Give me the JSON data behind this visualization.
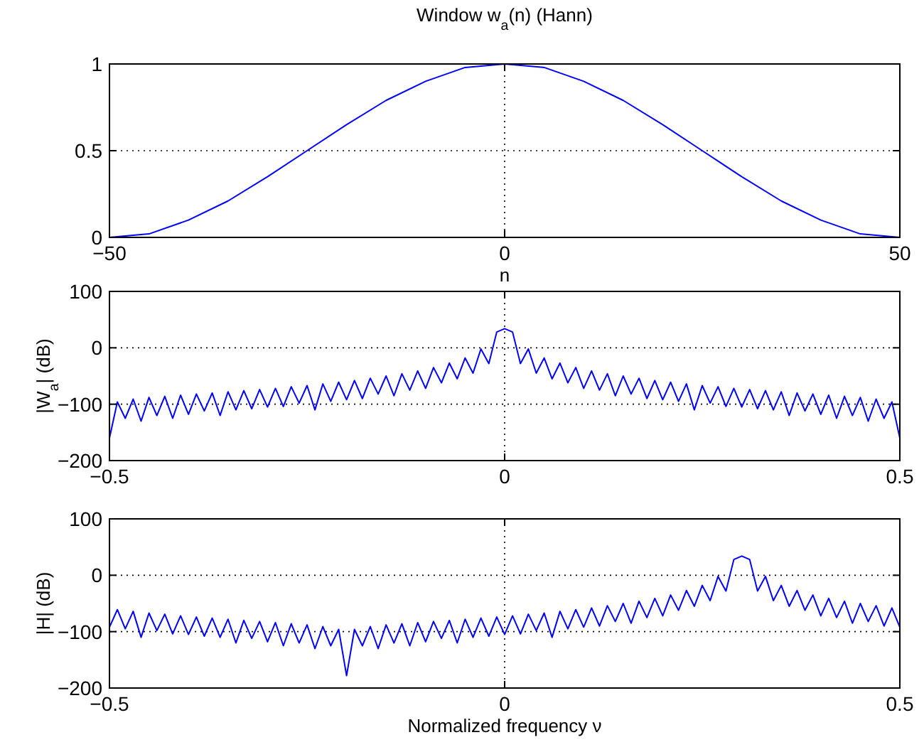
{
  "chart_data": [
    {
      "type": "line",
      "title": "Window w$_{a}$(n) (Hann)",
      "xlabel": "n",
      "x": [
        -50,
        -45,
        -40,
        -35,
        -30,
        -25,
        -20,
        -15,
        -10,
        -5,
        0,
        5,
        10,
        15,
        20,
        25,
        30,
        35,
        40,
        45,
        50
      ],
      "series": [
        {
          "color": "#0000ff",
          "values": [
            0,
            0.02,
            0.1,
            0.21,
            0.35,
            0.5,
            0.65,
            0.79,
            0.9,
            0.98,
            1,
            0.98,
            0.9,
            0.79,
            0.65,
            0.5,
            0.35,
            0.21,
            0.1,
            0.02,
            0
          ]
        }
      ],
      "xlim": [
        -50,
        50
      ],
      "xticks": [
        -50,
        0,
        50
      ],
      "ylim": [
        0,
        1
      ],
      "yticks": [
        0,
        0.5,
        1
      ],
      "grid": true,
      "line_style": "solid"
    },
    {
      "type": "line",
      "ylabel": "|W$_{a}$| (dB)",
      "x": [
        -0.5,
        -0.49,
        -0.48,
        -0.47,
        -0.46,
        -0.45,
        -0.44,
        -0.43,
        -0.42,
        -0.41,
        -0.4,
        -0.39,
        -0.38,
        -0.37,
        -0.36,
        -0.35,
        -0.34,
        -0.33,
        -0.32,
        -0.31,
        -0.3,
        -0.29,
        -0.28,
        -0.27,
        -0.26,
        -0.25,
        -0.24,
        -0.23,
        -0.22,
        -0.21,
        -0.2,
        -0.19,
        -0.18,
        -0.17,
        -0.16,
        -0.15,
        -0.14,
        -0.13,
        -0.12,
        -0.11,
        -0.1,
        -0.09,
        -0.08,
        -0.07,
        -0.06,
        -0.05,
        -0.04,
        -0.03,
        -0.02,
        -0.01,
        0,
        0.01,
        0.02,
        0.03,
        0.04,
        0.05,
        0.06,
        0.07,
        0.08,
        0.09,
        0.1,
        0.11,
        0.12,
        0.13,
        0.14,
        0.15,
        0.16,
        0.17,
        0.18,
        0.19,
        0.2,
        0.21,
        0.22,
        0.23,
        0.24,
        0.25,
        0.26,
        0.27,
        0.28,
        0.29,
        0.3,
        0.31,
        0.32,
        0.33,
        0.34,
        0.35,
        0.36,
        0.37,
        0.38,
        0.39,
        0.4,
        0.41,
        0.42,
        0.43,
        0.44,
        0.45,
        0.46,
        0.47,
        0.48,
        0.49,
        0.5
      ],
      "series": [
        {
          "color": "#0000ff",
          "values": [
            -160,
            -96,
            -125,
            -91,
            -130,
            -88,
            -120,
            -86,
            -125,
            -84,
            -118,
            -82,
            -112,
            -80,
            -120,
            -78,
            -110,
            -76,
            -108,
            -74,
            -105,
            -72,
            -104,
            -69,
            -98,
            -67,
            -110,
            -64,
            -95,
            -61,
            -92,
            -58,
            -90,
            -54,
            -82,
            -50,
            -85,
            -46,
            -75,
            -41,
            -72,
            -35,
            -62,
            -27,
            -55,
            -18,
            -45,
            -2,
            -28,
            28,
            34,
            28,
            -28,
            -2,
            -45,
            -18,
            -55,
            -27,
            -62,
            -35,
            -72,
            -41,
            -75,
            -46,
            -85,
            -50,
            -82,
            -54,
            -90,
            -58,
            -92,
            -61,
            -95,
            -64,
            -110,
            -67,
            -98,
            -69,
            -104,
            -72,
            -105,
            -74,
            -108,
            -76,
            -110,
            -78,
            -120,
            -80,
            -112,
            -82,
            -118,
            -84,
            -125,
            -86,
            -120,
            -88,
            -130,
            -91,
            -125,
            -96,
            -160
          ]
        }
      ],
      "xlim": [
        -0.5,
        0.5
      ],
      "xticks": [
        -0.5,
        0,
        0.5
      ],
      "ylim": [
        -200,
        100
      ],
      "yticks": [
        -200,
        -100,
        0,
        100
      ],
      "grid": true,
      "line_style": "solid"
    },
    {
      "type": "line",
      "ylabel": "|H| (dB)",
      "xlabel": "Normalized frequency  ν",
      "x": [
        -0.5,
        -0.49,
        -0.48,
        -0.47,
        -0.46,
        -0.45,
        -0.44,
        -0.43,
        -0.42,
        -0.41,
        -0.4,
        -0.39,
        -0.38,
        -0.37,
        -0.36,
        -0.35,
        -0.34,
        -0.33,
        -0.32,
        -0.31,
        -0.3,
        -0.29,
        -0.28,
        -0.27,
        -0.26,
        -0.25,
        -0.24,
        -0.23,
        -0.22,
        -0.21,
        -0.2,
        -0.19,
        -0.18,
        -0.17,
        -0.16,
        -0.15,
        -0.14,
        -0.13,
        -0.12,
        -0.11,
        -0.1,
        -0.09,
        -0.08,
        -0.07,
        -0.06,
        -0.05,
        -0.04,
        -0.03,
        -0.02,
        -0.01,
        0,
        0.01,
        0.02,
        0.03,
        0.04,
        0.05,
        0.06,
        0.07,
        0.08,
        0.09,
        0.1,
        0.11,
        0.12,
        0.13,
        0.14,
        0.15,
        0.16,
        0.17,
        0.18,
        0.19,
        0.2,
        0.21,
        0.22,
        0.23,
        0.24,
        0.25,
        0.26,
        0.27,
        0.28,
        0.29,
        0.3,
        0.31,
        0.32,
        0.33,
        0.34,
        0.35,
        0.36,
        0.37,
        0.38,
        0.39,
        0.4,
        0.41,
        0.42,
        0.43,
        0.44,
        0.45,
        0.46,
        0.47,
        0.48,
        0.49,
        0.5
      ],
      "series": [
        {
          "color": "#0000ff",
          "values": [
            -92,
            -61,
            -95,
            -64,
            -110,
            -67,
            -98,
            -69,
            -104,
            -72,
            -105,
            -74,
            -108,
            -76,
            -110,
            -78,
            -120,
            -80,
            -112,
            -82,
            -118,
            -84,
            -125,
            -86,
            -120,
            -88,
            -130,
            -91,
            -125,
            -96,
            -178,
            -96,
            -125,
            -91,
            -130,
            -88,
            -120,
            -86,
            -125,
            -84,
            -118,
            -82,
            -112,
            -80,
            -120,
            -78,
            -110,
            -76,
            -108,
            -74,
            -105,
            -72,
            -104,
            -69,
            -98,
            -67,
            -110,
            -64,
            -95,
            -61,
            -92,
            -58,
            -90,
            -54,
            -82,
            -50,
            -85,
            -46,
            -75,
            -41,
            -72,
            -35,
            -62,
            -27,
            -55,
            -18,
            -45,
            -2,
            -28,
            28,
            34,
            28,
            -28,
            -2,
            -45,
            -18,
            -55,
            -27,
            -62,
            -35,
            -72,
            -41,
            -75,
            -46,
            -85,
            -50,
            -82,
            -54,
            -90,
            -58,
            -92
          ]
        }
      ],
      "xlim": [
        -0.5,
        0.5
      ],
      "xticks": [
        -0.5,
        0,
        0.5
      ],
      "ylim": [
        -200,
        100
      ],
      "yticks": [
        -200,
        -100,
        0,
        100
      ],
      "grid": true,
      "line_style": "solid"
    }
  ]
}
